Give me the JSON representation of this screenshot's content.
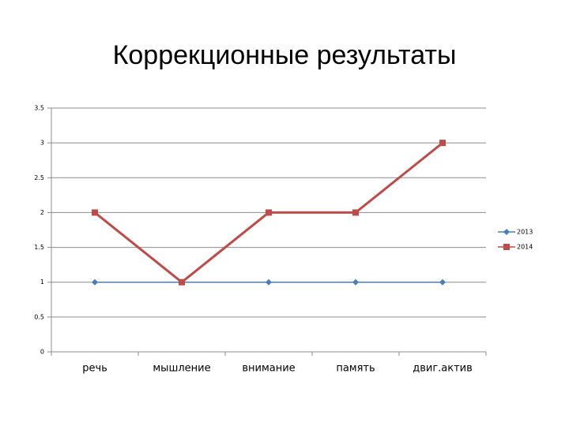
{
  "chart_data": {
    "type": "line",
    "title": "Коррекционные результаты",
    "categories": [
      "речь",
      "мышление",
      "внимание",
      "память",
      "двиг.актив"
    ],
    "series": [
      {
        "name": "2013",
        "color": "#4a7ebb",
        "marker": "diamond",
        "values": [
          1,
          1,
          1,
          1,
          1
        ]
      },
      {
        "name": "2014",
        "color": "#be4b48",
        "marker": "square",
        "values": [
          2,
          1,
          2,
          2,
          3
        ]
      }
    ],
    "ylim": [
      0,
      3.5
    ],
    "yticks": [
      0,
      0.5,
      1,
      1.5,
      2,
      2.5,
      3,
      3.5
    ],
    "grid": true,
    "legend": "right"
  }
}
